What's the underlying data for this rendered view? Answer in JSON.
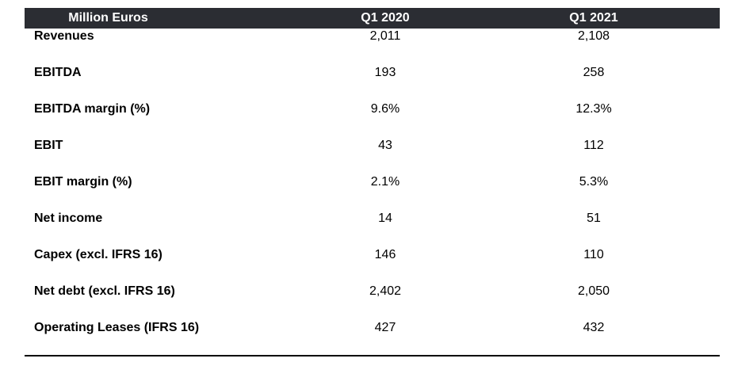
{
  "table": {
    "header": {
      "label": "Million Euros",
      "columns": [
        "Q1 2020",
        "Q1 2021"
      ]
    },
    "rows": [
      {
        "label": "Revenues",
        "values": [
          "2,011",
          "2,108"
        ]
      },
      {
        "label": "EBITDA",
        "values": [
          "193",
          "258"
        ]
      },
      {
        "label": "EBITDA margin (%)",
        "values": [
          "9.6%",
          "12.3%"
        ]
      },
      {
        "label": "EBIT",
        "values": [
          "43",
          "112"
        ]
      },
      {
        "label": "EBIT margin (%)",
        "values": [
          "2.1%",
          "5.3%"
        ]
      },
      {
        "label": "Net income",
        "values": [
          "14",
          "51"
        ]
      },
      {
        "label": "Capex (excl. IFRS 16)",
        "values": [
          "146",
          "110"
        ]
      },
      {
        "label": "Net debt (excl. IFRS 16)",
        "values": [
          "2,402",
          "2,050"
        ]
      },
      {
        "label": "Operating Leases (IFRS 16)",
        "values": [
          "427",
          "432"
        ]
      }
    ]
  },
  "colors": {
    "header_background": "#2b2d33",
    "header_text": "#ffffff",
    "body_text": "#000000"
  }
}
